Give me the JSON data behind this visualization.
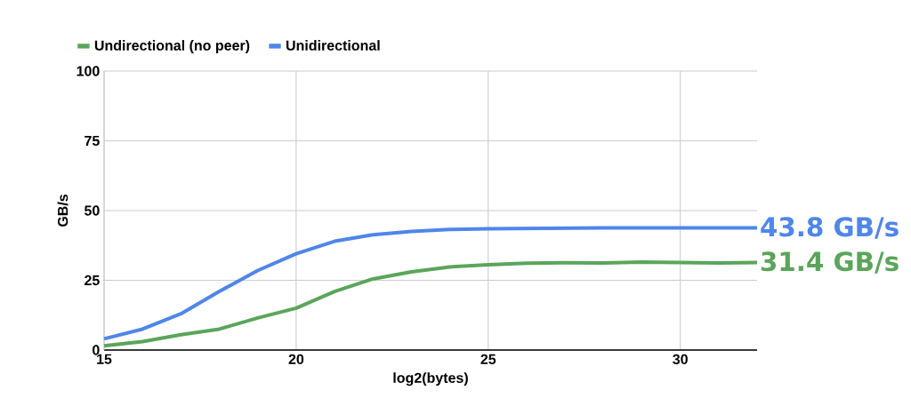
{
  "chart_data": {
    "type": "line",
    "xlabel": "log2(bytes)",
    "ylabel": "GB/s",
    "x": [
      15,
      16,
      17,
      18,
      19,
      20,
      21,
      22,
      23,
      24,
      25,
      26,
      27,
      28,
      29,
      30,
      31,
      32
    ],
    "series": [
      {
        "name": "Undirectional (no peer)",
        "color": "#5aa55a",
        "values": [
          1.5,
          3,
          5.5,
          7.5,
          11.5,
          15,
          21,
          25.5,
          28,
          29.8,
          30.6,
          31.1,
          31.3,
          31.2,
          31.5,
          31.4,
          31.2,
          31.4
        ]
      },
      {
        "name": "Unidirectional",
        "color": "#4f86e8",
        "values": [
          4,
          7.5,
          13,
          21,
          28.5,
          34.5,
          39,
          41.3,
          42.5,
          43.2,
          43.5,
          43.6,
          43.7,
          43.8,
          43.8,
          43.8,
          43.8,
          43.8
        ]
      }
    ],
    "annotations": [
      {
        "text": "43.8 GB/s",
        "x": 32,
        "y": 43.8
      },
      {
        "text": "31.4 GB/s",
        "x": 32,
        "y": 31.4
      }
    ],
    "xlim": [
      15,
      32
    ],
    "ylim": [
      0,
      100
    ],
    "xticks": [
      15,
      20,
      25,
      30
    ],
    "yticks": [
      0,
      25,
      50,
      75,
      100
    ],
    "grid": true,
    "legend": "top left",
    "marker": "none",
    "line_style": "solid"
  }
}
